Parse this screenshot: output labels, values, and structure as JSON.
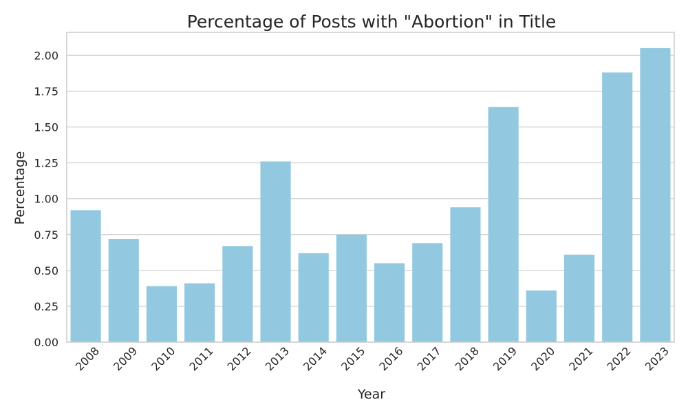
{
  "chart_data": {
    "type": "bar",
    "title": "Percentage of Posts with \"Abortion\" in Title",
    "xlabel": "Year",
    "ylabel": "Percentage",
    "categories": [
      "2008",
      "2009",
      "2010",
      "2011",
      "2012",
      "2013",
      "2014",
      "2015",
      "2016",
      "2017",
      "2018",
      "2019",
      "2020",
      "2021",
      "2022",
      "2023"
    ],
    "values": [
      0.92,
      0.72,
      0.39,
      0.41,
      0.67,
      1.26,
      0.62,
      0.75,
      0.55,
      0.69,
      0.94,
      1.64,
      0.36,
      0.61,
      1.88,
      2.05
    ],
    "ylim": [
      0,
      2.16
    ],
    "yticks": [
      "0.00",
      "0.25",
      "0.50",
      "0.75",
      "1.00",
      "1.25",
      "1.50",
      "1.75",
      "2.00"
    ],
    "grid": true,
    "grid_axis": "y",
    "bar_color": "#92c9e0",
    "grid_color": "#cccccc",
    "text_color": "#262626"
  }
}
